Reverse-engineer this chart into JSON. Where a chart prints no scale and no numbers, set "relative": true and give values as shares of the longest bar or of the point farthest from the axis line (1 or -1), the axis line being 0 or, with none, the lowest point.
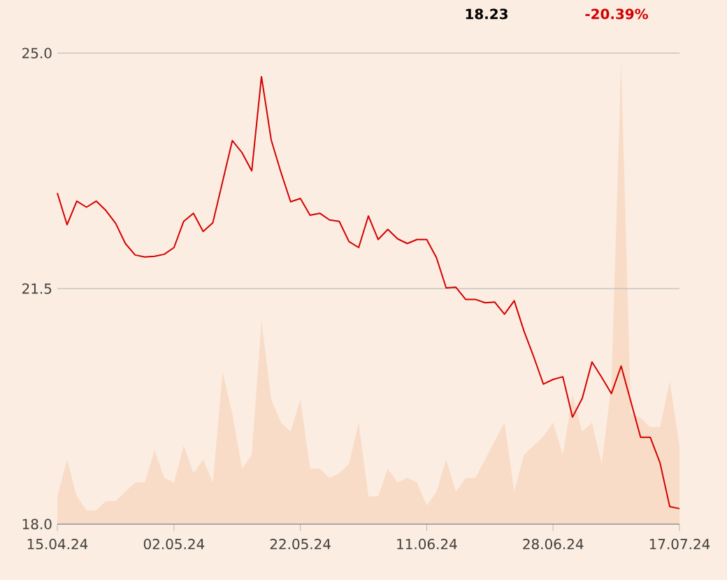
{
  "chart_data": [
    {
      "type": "line",
      "annotations": [
        "18.23",
        "-20.39%"
      ],
      "categories": [
        "15.04.24",
        null,
        null,
        null,
        null,
        null,
        null,
        null,
        null,
        null,
        null,
        null,
        "02.05.24",
        null,
        null,
        null,
        null,
        null,
        null,
        null,
        null,
        null,
        null,
        null,
        null,
        "22.05.24",
        null,
        null,
        null,
        null,
        null,
        null,
        null,
        null,
        null,
        null,
        null,
        null,
        "11.06.24",
        null,
        null,
        null,
        null,
        null,
        null,
        null,
        null,
        null,
        null,
        null,
        null,
        "28.06.24",
        null,
        null,
        null,
        null,
        null,
        null,
        null,
        null,
        null,
        null,
        null,
        null,
        "17.07.24"
      ],
      "series": [
        {
          "color": "#d40000",
          "values": [
            22.92,
            22.45,
            22.8,
            22.71,
            22.8,
            22.66,
            22.47,
            22.17,
            22.0,
            21.97,
            21.98,
            22.01,
            22.11,
            22.5,
            22.62,
            22.35,
            22.48,
            23.09,
            23.7,
            23.52,
            23.25,
            24.65,
            23.71,
            23.23,
            22.79,
            22.84,
            22.59,
            22.62,
            22.52,
            22.5,
            22.2,
            22.11,
            22.58,
            22.23,
            22.38,
            22.24,
            22.17,
            22.23,
            22.23,
            21.96,
            21.51,
            21.52,
            21.34,
            21.34,
            21.29,
            21.3,
            21.12,
            21.32,
            20.87,
            20.49,
            20.08,
            20.15,
            20.19,
            19.59,
            19.87,
            20.41,
            20.18,
            19.94,
            20.35,
            19.82,
            19.29,
            19.29,
            18.91,
            18.26,
            18.23
          ]
        }
      ],
      "ylim": [
        18,
        25
      ],
      "yticks": [
        {
          "value": 18,
          "label": "18.0"
        },
        {
          "value": 21.5,
          "label": "21.5"
        },
        {
          "value": 25,
          "label": "25.0"
        }
      ],
      "grid": "y",
      "marker": "none",
      "line_style": "solid"
    },
    {
      "type": "area",
      "relative": true,
      "categories": [
        null,
        null,
        null,
        null,
        null,
        null,
        null,
        null,
        null,
        null,
        null,
        null,
        null,
        null,
        null,
        null,
        null,
        null,
        null,
        null,
        null,
        null,
        null,
        null,
        null,
        null,
        null,
        null,
        null,
        null,
        null,
        null,
        null,
        null,
        null,
        null,
        null,
        null,
        null,
        null,
        null,
        null,
        null,
        null,
        null,
        null,
        null,
        null,
        null,
        null,
        null,
        null,
        null,
        null,
        null,
        null,
        null,
        null,
        null,
        null,
        null,
        null,
        null,
        null,
        null
      ],
      "series": [
        {
          "color": "#f8dcc8",
          "values": [
            0.06,
            0.14,
            0.06,
            0.03,
            0.03,
            0.05,
            0.05,
            0.07,
            0.09,
            0.09,
            0.16,
            0.1,
            0.09,
            0.17,
            0.11,
            0.14,
            0.09,
            0.33,
            0.24,
            0.12,
            0.15,
            0.44,
            0.27,
            0.22,
            0.2,
            0.27,
            0.12,
            0.12,
            0.1,
            0.11,
            0.13,
            0.22,
            0.06,
            0.06,
            0.12,
            0.09,
            0.1,
            0.09,
            0.04,
            0.07,
            0.14,
            0.07,
            0.1,
            0.1,
            0.14,
            0.18,
            0.22,
            0.07,
            0.15,
            0.17,
            0.19,
            0.22,
            0.15,
            0.28,
            0.2,
            0.22,
            0.13,
            0.3,
            1.0,
            0.24,
            0.23,
            0.21,
            0.21,
            0.31,
            0.17
          ]
        }
      ]
    }
  ]
}
